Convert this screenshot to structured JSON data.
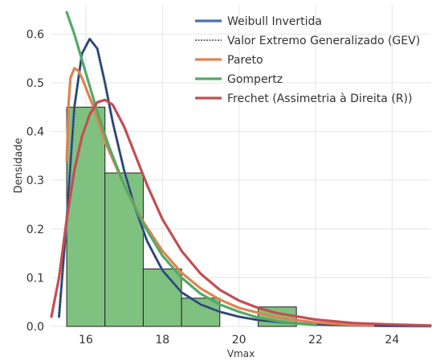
{
  "chart_data": {
    "type": "histogram+line",
    "title": "",
    "xlabel": "Vmax",
    "ylabel": "Densidade",
    "xlim": [
      15.1,
      25.0
    ],
    "ylim": [
      0,
      0.66
    ],
    "xticks": [
      16,
      18,
      20,
      22,
      24
    ],
    "xtick_labels": [
      "16",
      "18",
      "20",
      "22",
      "24"
    ],
    "yticks": [
      0.0,
      0.1,
      0.2,
      0.3,
      0.4,
      0.5,
      0.6
    ],
    "ytick_labels": [
      "0.0",
      "0.1",
      "0.2",
      "0.3",
      "0.4",
      "0.5",
      "0.6"
    ],
    "grid": true,
    "legend_position": "top-right",
    "histogram": {
      "color": "#7fc17f",
      "edge_color": "#222222",
      "bins": [
        {
          "x0": 15.5,
          "x1": 16.5,
          "value": 0.45
        },
        {
          "x0": 16.5,
          "x1": 17.5,
          "value": 0.315
        },
        {
          "x0": 17.5,
          "x1": 18.5,
          "value": 0.118
        },
        {
          "x0": 18.5,
          "x1": 19.5,
          "value": 0.058
        },
        {
          "x0": 19.5,
          "x1": 20.5,
          "value": 0.0
        },
        {
          "x0": 20.5,
          "x1": 21.5,
          "value": 0.04
        }
      ]
    },
    "series": [
      {
        "name": "Weibull Invertida",
        "color": "#4c72b0",
        "dashed": false,
        "x": [
          15.3,
          15.5,
          15.7,
          15.9,
          16.1,
          16.3,
          16.5,
          16.7,
          17.0,
          17.3,
          17.6,
          18.0,
          18.5,
          19.0,
          19.5,
          20.0,
          20.5,
          21.0,
          22.0,
          23.0,
          24.0,
          25.0
        ],
        "y": [
          0.02,
          0.22,
          0.45,
          0.56,
          0.59,
          0.57,
          0.5,
          0.42,
          0.32,
          0.24,
          0.175,
          0.115,
          0.07,
          0.045,
          0.03,
          0.02,
          0.013,
          0.009,
          0.004,
          0.002,
          0.001,
          0.0005
        ]
      },
      {
        "name": "Valor Extremo Generalizado (GEV)",
        "color": "#222222",
        "dashed": true,
        "x": [
          15.3,
          15.5,
          15.7,
          15.9,
          16.1,
          16.3,
          16.5,
          16.7,
          17.0,
          17.3,
          17.6,
          18.0,
          18.5,
          19.0,
          19.5,
          20.0,
          20.5,
          21.0,
          22.0,
          23.0,
          24.0,
          25.0
        ],
        "y": [
          0.02,
          0.22,
          0.45,
          0.56,
          0.59,
          0.57,
          0.5,
          0.42,
          0.32,
          0.24,
          0.175,
          0.115,
          0.07,
          0.045,
          0.03,
          0.02,
          0.013,
          0.009,
          0.004,
          0.002,
          0.001,
          0.0005
        ]
      },
      {
        "name": "Pareto",
        "color": "#dd8452",
        "dashed": false,
        "x": [
          15.5,
          15.55,
          15.6,
          15.7,
          15.8,
          15.9,
          16.0,
          16.2,
          16.5,
          17.0,
          17.5,
          18.0,
          18.5,
          19.0,
          19.5,
          20.0,
          21.0,
          22.0,
          23.0,
          23.5
        ],
        "y": [
          0.34,
          0.46,
          0.51,
          0.53,
          0.525,
          0.51,
          0.49,
          0.45,
          0.38,
          0.29,
          0.215,
          0.155,
          0.11,
          0.078,
          0.055,
          0.038,
          0.018,
          0.008,
          0.003,
          0.002
        ]
      },
      {
        "name": "Gompertz",
        "color": "#55a868",
        "dashed": false,
        "x": [
          15.5,
          15.7,
          16.0,
          16.3,
          16.6,
          17.0,
          17.5,
          18.0,
          18.5,
          19.0,
          19.5,
          20.0,
          20.5,
          21.0,
          21.5,
          22.0
        ],
        "y": [
          0.645,
          0.6,
          0.52,
          0.44,
          0.37,
          0.29,
          0.21,
          0.145,
          0.1,
          0.067,
          0.045,
          0.03,
          0.018,
          0.011,
          0.006,
          0.003
        ]
      },
      {
        "name": "Frechet (Assimetria à Direita (R))",
        "color": "#c44e52",
        "dashed": false,
        "x": [
          15.1,
          15.3,
          15.5,
          15.7,
          15.9,
          16.1,
          16.3,
          16.5,
          16.7,
          17.0,
          17.3,
          17.6,
          18.0,
          18.5,
          19.0,
          19.5,
          20.0,
          20.5,
          21.0,
          22.0,
          23.0,
          24.0,
          25.0
        ],
        "y": [
          0.02,
          0.1,
          0.22,
          0.32,
          0.39,
          0.435,
          0.46,
          0.465,
          0.455,
          0.41,
          0.35,
          0.29,
          0.22,
          0.155,
          0.108,
          0.075,
          0.053,
          0.038,
          0.027,
          0.014,
          0.007,
          0.004,
          0.002
        ]
      }
    ]
  }
}
